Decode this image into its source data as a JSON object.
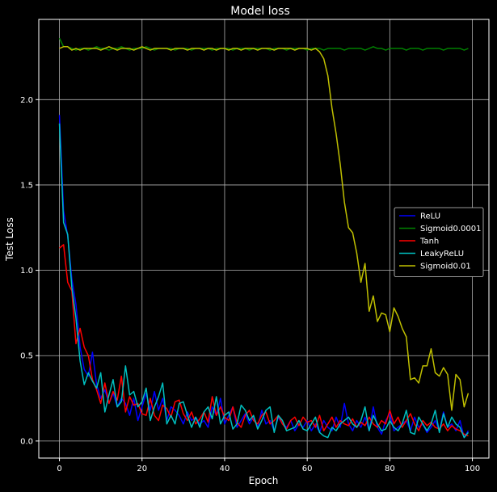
{
  "chart_data": {
    "type": "line",
    "title": "Model loss",
    "xlabel": "Epoch",
    "ylabel": "Test Loss",
    "xlim": [
      -5,
      104
    ],
    "ylim": [
      -0.1,
      2.47
    ],
    "xticks": [
      0,
      20,
      40,
      60,
      80,
      100
    ],
    "xtick_labels": [
      "0",
      "20",
      "40",
      "60",
      "80",
      "100"
    ],
    "yticks": [
      0.0,
      0.5,
      1.0,
      1.5,
      2.0
    ],
    "ytick_labels": [
      "0.0",
      "0.5",
      "1.0",
      "1.5",
      "2.0"
    ],
    "grid": true,
    "legend_position": "center-right",
    "background": "#000000",
    "x": [
      0,
      1,
      2,
      3,
      4,
      5,
      6,
      7,
      8,
      9,
      10,
      11,
      12,
      13,
      14,
      15,
      16,
      17,
      18,
      19,
      20,
      21,
      22,
      23,
      24,
      25,
      26,
      27,
      28,
      29,
      30,
      31,
      32,
      33,
      34,
      35,
      36,
      37,
      38,
      39,
      40,
      41,
      42,
      43,
      44,
      45,
      46,
      47,
      48,
      49,
      50,
      51,
      52,
      53,
      54,
      55,
      56,
      57,
      58,
      59,
      60,
      61,
      62,
      63,
      64,
      65,
      66,
      67,
      68,
      69,
      70,
      71,
      72,
      73,
      74,
      75,
      76,
      77,
      78,
      79,
      80,
      81,
      82,
      83,
      84,
      85,
      86,
      87,
      88,
      89,
      90,
      91,
      92,
      93,
      94,
      95,
      96,
      97,
      98,
      99
    ],
    "series": [
      {
        "name": "ReLU",
        "color": "#0000ff",
        "values": [
          1.91,
          1.35,
          1.2,
          0.95,
          0.8,
          0.55,
          0.42,
          0.38,
          0.52,
          0.33,
          0.25,
          0.3,
          0.22,
          0.28,
          0.2,
          0.25,
          0.22,
          0.15,
          0.25,
          0.12,
          0.2,
          0.28,
          0.18,
          0.29,
          0.18,
          0.25,
          0.12,
          0.2,
          0.18,
          0.15,
          0.1,
          0.17,
          0.12,
          0.14,
          0.1,
          0.12,
          0.08,
          0.2,
          0.15,
          0.25,
          0.1,
          0.15,
          0.2,
          0.08,
          0.12,
          0.16,
          0.1,
          0.14,
          0.08,
          0.18,
          0.1,
          0.12,
          0.06,
          0.14,
          0.1,
          0.08,
          0.12,
          0.06,
          0.1,
          0.08,
          0.12,
          0.06,
          0.1,
          0.05,
          0.12,
          0.08,
          0.06,
          0.14,
          0.08,
          0.22,
          0.1,
          0.06,
          0.12,
          0.08,
          0.14,
          0.06,
          0.2,
          0.08,
          0.04,
          0.12,
          0.16,
          0.06,
          0.08,
          0.1,
          0.12,
          0.06,
          0.14,
          0.08,
          0.1,
          0.05,
          0.08,
          0.12,
          0.06,
          0.17,
          0.08,
          0.1,
          0.06,
          0.12,
          0.02,
          0.06
        ]
      },
      {
        "name": "Sigmoid0.0001",
        "color": "#008000",
        "values": [
          2.36,
          2.31,
          2.31,
          2.3,
          2.29,
          2.3,
          2.3,
          2.29,
          2.3,
          2.31,
          2.3,
          2.3,
          2.29,
          2.3,
          2.3,
          2.31,
          2.3,
          2.29,
          2.3,
          2.3,
          2.3,
          2.31,
          2.3,
          2.29,
          2.3,
          2.3,
          2.3,
          2.3,
          2.29,
          2.3,
          2.3,
          2.3,
          2.29,
          2.3,
          2.3,
          2.3,
          2.3,
          2.29,
          2.3,
          2.3,
          2.3,
          2.3,
          2.29,
          2.3,
          2.3,
          2.3,
          2.29,
          2.3,
          2.3,
          2.3,
          2.3,
          2.29,
          2.3,
          2.3,
          2.3,
          2.29,
          2.3,
          2.3,
          2.3,
          2.3,
          2.29,
          2.3,
          2.3,
          2.3,
          2.29,
          2.3,
          2.3,
          2.3,
          2.3,
          2.29,
          2.3,
          2.3,
          2.3,
          2.3,
          2.29,
          2.3,
          2.31,
          2.3,
          2.3,
          2.29,
          2.3,
          2.3,
          2.3,
          2.3,
          2.29,
          2.3,
          2.3,
          2.3,
          2.29,
          2.3,
          2.3,
          2.3,
          2.3,
          2.29,
          2.3,
          2.3,
          2.3,
          2.3,
          2.29,
          2.3
        ]
      },
      {
        "name": "Tanh",
        "color": "#ff0000",
        "values": [
          1.13,
          1.15,
          0.93,
          0.88,
          0.57,
          0.66,
          0.55,
          0.5,
          0.36,
          0.3,
          0.22,
          0.34,
          0.22,
          0.29,
          0.24,
          0.38,
          0.17,
          0.26,
          0.21,
          0.22,
          0.16,
          0.15,
          0.25,
          0.15,
          0.12,
          0.21,
          0.19,
          0.14,
          0.23,
          0.24,
          0.16,
          0.12,
          0.17,
          0.1,
          0.13,
          0.17,
          0.11,
          0.26,
          0.15,
          0.2,
          0.14,
          0.12,
          0.2,
          0.11,
          0.08,
          0.15,
          0.18,
          0.12,
          0.1,
          0.15,
          0.17,
          0.1,
          0.12,
          0.15,
          0.1,
          0.07,
          0.12,
          0.14,
          0.09,
          0.14,
          0.11,
          0.12,
          0.08,
          0.15,
          0.06,
          0.1,
          0.14,
          0.08,
          0.12,
          0.1,
          0.09,
          0.13,
          0.08,
          0.11,
          0.09,
          0.14,
          0.1,
          0.08,
          0.12,
          0.1,
          0.18,
          0.1,
          0.14,
          0.08,
          0.12,
          0.16,
          0.1,
          0.06,
          0.12,
          0.09,
          0.11,
          0.08,
          0.07,
          0.1,
          0.06,
          0.09,
          0.07,
          0.06,
          0.04,
          0.03
        ]
      },
      {
        "name": "LeakyReLU",
        "color": "#00bfbf",
        "values": [
          1.86,
          1.28,
          1.21,
          0.9,
          0.72,
          0.47,
          0.33,
          0.4,
          0.35,
          0.31,
          0.4,
          0.17,
          0.27,
          0.36,
          0.2,
          0.23,
          0.44,
          0.27,
          0.29,
          0.2,
          0.23,
          0.31,
          0.12,
          0.2,
          0.26,
          0.34,
          0.1,
          0.15,
          0.1,
          0.22,
          0.23,
          0.15,
          0.08,
          0.14,
          0.08,
          0.17,
          0.2,
          0.13,
          0.26,
          0.1,
          0.15,
          0.17,
          0.07,
          0.1,
          0.21,
          0.18,
          0.12,
          0.15,
          0.07,
          0.12,
          0.18,
          0.2,
          0.05,
          0.15,
          0.12,
          0.06,
          0.07,
          0.08,
          0.12,
          0.07,
          0.06,
          0.1,
          0.14,
          0.05,
          0.03,
          0.02,
          0.08,
          0.06,
          0.1,
          0.12,
          0.14,
          0.1,
          0.08,
          0.12,
          0.2,
          0.06,
          0.15,
          0.1,
          0.06,
          0.07,
          0.12,
          0.08,
          0.06,
          0.1,
          0.18,
          0.05,
          0.04,
          0.14,
          0.1,
          0.06,
          0.1,
          0.18,
          0.05,
          0.16,
          0.08,
          0.14,
          0.1,
          0.08,
          0.02,
          0.05
        ]
      },
      {
        "name": "Sigmoid0.01",
        "color": "#bfbf00",
        "values": [
          2.3,
          2.31,
          2.31,
          2.29,
          2.3,
          2.29,
          2.3,
          2.3,
          2.3,
          2.3,
          2.29,
          2.3,
          2.31,
          2.3,
          2.29,
          2.3,
          2.3,
          2.3,
          2.29,
          2.3,
          2.31,
          2.3,
          2.29,
          2.3,
          2.3,
          2.3,
          2.3,
          2.29,
          2.3,
          2.3,
          2.3,
          2.29,
          2.3,
          2.3,
          2.3,
          2.29,
          2.3,
          2.3,
          2.29,
          2.3,
          2.3,
          2.29,
          2.3,
          2.3,
          2.29,
          2.3,
          2.3,
          2.3,
          2.29,
          2.3,
          2.3,
          2.3,
          2.29,
          2.3,
          2.3,
          2.3,
          2.3,
          2.29,
          2.3,
          2.3,
          2.3,
          2.29,
          2.3,
          2.28,
          2.24,
          2.14,
          1.95,
          1.8,
          1.62,
          1.4,
          1.25,
          1.22,
          1.1,
          0.93,
          1.04,
          0.76,
          0.85,
          0.7,
          0.75,
          0.74,
          0.64,
          0.78,
          0.73,
          0.66,
          0.61,
          0.36,
          0.37,
          0.34,
          0.44,
          0.44,
          0.54,
          0.4,
          0.38,
          0.43,
          0.39,
          0.18,
          0.39,
          0.36,
          0.2,
          0.28
        ]
      }
    ]
  }
}
